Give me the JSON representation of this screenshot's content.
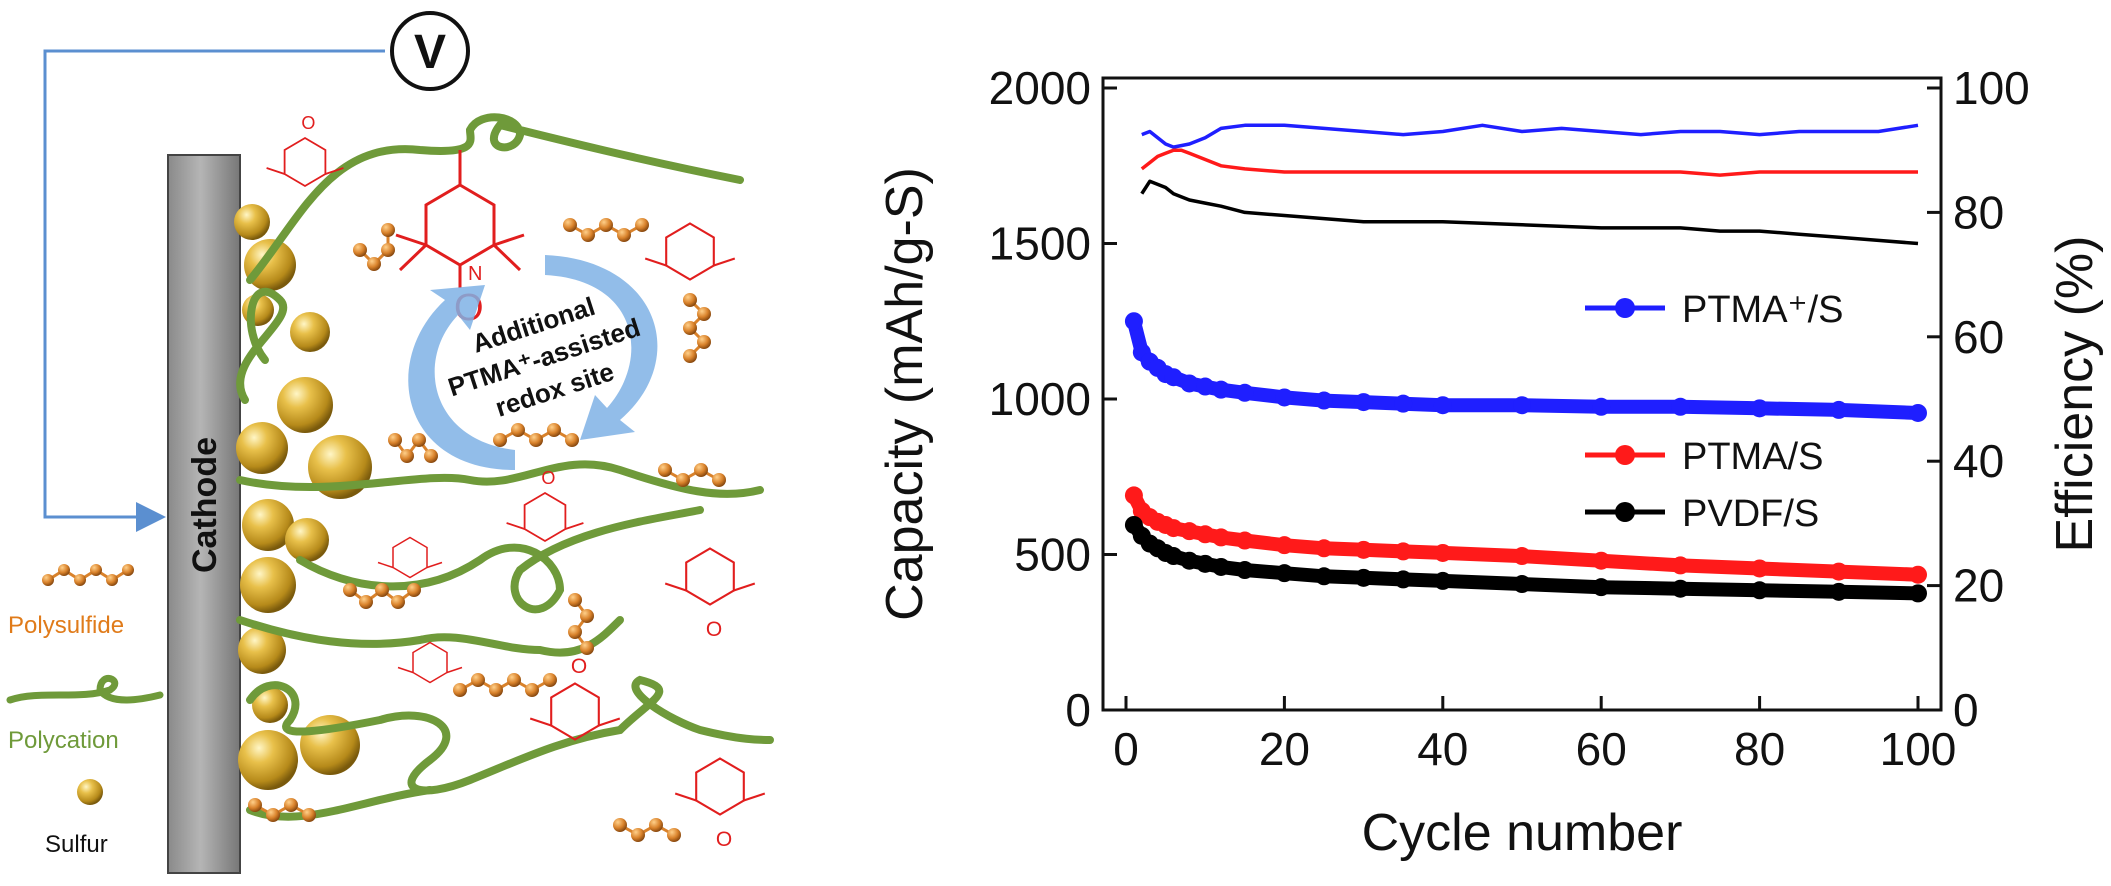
{
  "schematic": {
    "voltmeter_label": "V",
    "electrode_label": "Cathode",
    "cycle_label_lines": [
      "Additional",
      "PTMA⁺-assisted",
      "redox site"
    ],
    "legend": [
      {
        "label": "Polysulfide",
        "color": "#e07b1a",
        "icon": "polysulfide-chain-icon"
      },
      {
        "label": "Polycation",
        "color": "#6f9a3a",
        "icon": "polycation-strand-icon"
      },
      {
        "label": "Sulfur",
        "color": "#111111",
        "icon": "sulfur-sphere-icon"
      }
    ],
    "colors": {
      "wire": "#5b8fd0",
      "polycation": "#6f9a3a",
      "polysulfide": "#d9822b",
      "nitroxide": "#e11e1e",
      "sulfur": "#caa12a",
      "arrow": "#7fb2e5"
    }
  },
  "chart_data": {
    "type": "line",
    "xlabel": "Cycle number",
    "ylabel_left": "Capacity (mAh/g-S)",
    "ylabel_right": "Efficiency (%)",
    "xlim": [
      0,
      100
    ],
    "ylim_left": [
      0,
      2000
    ],
    "ylim_right": [
      0,
      100
    ],
    "xticks": [
      0,
      20,
      40,
      60,
      80,
      100
    ],
    "yticks_left": [
      0,
      500,
      1000,
      1500,
      2000
    ],
    "yticks_right": [
      0,
      20,
      40,
      60,
      80,
      100
    ],
    "legend_position": "right",
    "capacity_series": [
      {
        "name": "PTMA⁺/S",
        "color": "#1f1fff",
        "x": [
          1,
          2,
          3,
          4,
          5,
          6,
          8,
          10,
          12,
          15,
          20,
          25,
          30,
          35,
          40,
          50,
          60,
          70,
          80,
          90,
          100
        ],
        "y": [
          1250,
          1150,
          1120,
          1100,
          1080,
          1070,
          1050,
          1040,
          1030,
          1020,
          1005,
          995,
          990,
          985,
          980,
          980,
          975,
          975,
          970,
          965,
          955
        ]
      },
      {
        "name": "PTMA/S",
        "color": "#ff1a1a",
        "x": [
          1,
          2,
          3,
          4,
          5,
          6,
          8,
          10,
          12,
          15,
          20,
          25,
          30,
          35,
          40,
          50,
          60,
          70,
          80,
          90,
          100
        ],
        "y": [
          690,
          640,
          620,
          605,
          595,
          585,
          575,
          565,
          555,
          545,
          530,
          520,
          515,
          510,
          505,
          495,
          480,
          465,
          455,
          445,
          435
        ]
      },
      {
        "name": "PVDF/S",
        "color": "#000000",
        "x": [
          1,
          2,
          3,
          4,
          5,
          6,
          8,
          10,
          12,
          15,
          20,
          25,
          30,
          35,
          40,
          50,
          60,
          70,
          80,
          90,
          100
        ],
        "y": [
          595,
          560,
          535,
          520,
          505,
          495,
          480,
          470,
          460,
          450,
          440,
          430,
          425,
          420,
          415,
          405,
          395,
          390,
          385,
          380,
          375
        ]
      }
    ],
    "efficiency_series": [
      {
        "name": "PTMA⁺/S",
        "color": "#1f1fff",
        "x": [
          2,
          3,
          4,
          5,
          6,
          8,
          10,
          12,
          15,
          20,
          25,
          30,
          35,
          40,
          45,
          50,
          55,
          60,
          65,
          70,
          75,
          80,
          85,
          90,
          95,
          100
        ],
        "y": [
          92.5,
          93,
          92,
          91,
          90.5,
          91,
          92,
          93.5,
          94,
          94,
          93.5,
          93,
          92.5,
          93,
          94,
          93,
          93.5,
          93,
          92.5,
          93,
          93,
          92.5,
          93,
          93,
          93,
          94
        ]
      },
      {
        "name": "PTMA/S",
        "color": "#ff1a1a",
        "x": [
          2,
          3,
          4,
          5,
          6,
          7,
          8,
          10,
          12,
          15,
          20,
          25,
          30,
          35,
          40,
          50,
          60,
          70,
          75,
          80,
          85,
          90,
          95,
          100
        ],
        "y": [
          87,
          88,
          89,
          89.5,
          90,
          90,
          89.5,
          88.5,
          87.5,
          87,
          86.5,
          86.5,
          86.5,
          86.5,
          86.5,
          86.5,
          86.5,
          86.5,
          86,
          86.5,
          86.5,
          86.5,
          86.5,
          86.5
        ]
      },
      {
        "name": "PVDF/S",
        "color": "#000000",
        "x": [
          2,
          3,
          4,
          5,
          6,
          8,
          10,
          12,
          15,
          20,
          25,
          30,
          35,
          40,
          50,
          60,
          70,
          75,
          80,
          85,
          90,
          95,
          100
        ],
        "y": [
          83,
          85,
          84.5,
          84,
          83,
          82,
          81.5,
          81,
          80,
          79.5,
          79,
          78.5,
          78.5,
          78.5,
          78,
          77.5,
          77.5,
          77,
          77,
          76.5,
          76,
          75.5,
          75
        ]
      }
    ]
  }
}
